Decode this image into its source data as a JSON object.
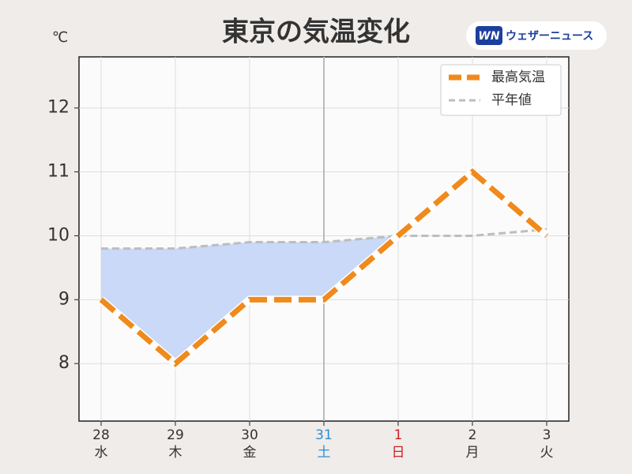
{
  "logo": {
    "badge": "WN",
    "name": "ウェザーニュース"
  },
  "chart_data": {
    "type": "line",
    "title": "東京の気温変化",
    "y_unit": "℃",
    "categories": [
      "28",
      "29",
      "30",
      "31",
      "1",
      "2",
      "3"
    ],
    "weekdays": [
      "水",
      "木",
      "金",
      "土",
      "日",
      "月",
      "火"
    ],
    "category_colors": [
      "#333333",
      "#333333",
      "#333333",
      "#2b8fd6",
      "#d0202a",
      "#333333",
      "#333333"
    ],
    "series": [
      {
        "name": "最高気温",
        "color": "#f08a1c",
        "values": [
          9,
          8,
          9,
          9,
          10,
          11,
          10
        ]
      },
      {
        "name": "平年値",
        "color": "#bdbdbd",
        "values": [
          9.8,
          9.8,
          9.9,
          9.9,
          10.0,
          10.0,
          10.1
        ]
      }
    ],
    "fill_below_color": "#c9d9f7",
    "ylim": [
      7.1,
      12.8
    ],
    "yticks": [
      8,
      9,
      10,
      11,
      12
    ],
    "grid": true,
    "legend": "upper right"
  }
}
